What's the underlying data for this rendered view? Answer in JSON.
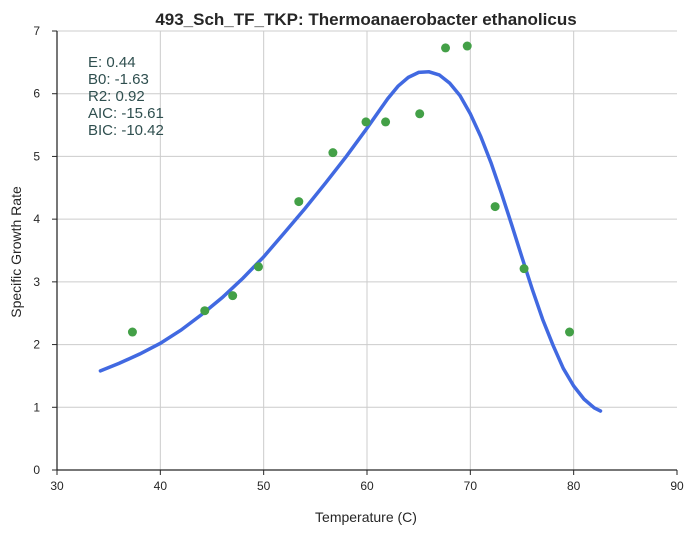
{
  "chart_data": {
    "type": "scatter",
    "title": "493_Sch_TF_TKP: Thermoanaerobacter ethanolicus",
    "xlabel": "Temperature (C)",
    "ylabel": "Specific Growth Rate",
    "xlim": [
      30,
      90
    ],
    "ylim": [
      0,
      7
    ],
    "x_ticks": [
      "30",
      "40",
      "50",
      "60",
      "70",
      "80",
      "90"
    ],
    "y_ticks": [
      "0",
      "1",
      "2",
      "3",
      "4",
      "5",
      "6",
      "7"
    ],
    "grid": true,
    "points": {
      "color": "#43a047",
      "x": [
        37.3,
        44.3,
        47.0,
        49.5,
        53.4,
        56.7,
        59.9,
        61.8,
        65.1,
        67.6,
        69.7,
        72.4,
        75.2,
        79.6
      ],
      "y": [
        2.2,
        2.54,
        2.78,
        3.24,
        4.28,
        5.06,
        5.55,
        5.55,
        5.68,
        6.73,
        6.76,
        4.2,
        3.21,
        2.2
      ]
    },
    "fit": {
      "color": "#4169e1",
      "x": [
        34.2,
        36,
        38,
        40,
        42,
        44,
        46,
        48,
        50,
        52,
        54,
        56,
        58,
        60,
        62,
        63,
        64,
        65,
        66,
        67,
        68,
        69,
        70,
        71,
        72,
        73,
        74,
        75,
        76,
        77,
        78,
        79,
        80,
        81,
        82,
        82.6
      ],
      "y": [
        1.58,
        1.7,
        1.85,
        2.02,
        2.23,
        2.48,
        2.75,
        3.06,
        3.4,
        3.78,
        4.17,
        4.58,
        5.0,
        5.45,
        5.92,
        6.12,
        6.26,
        6.34,
        6.35,
        6.3,
        6.17,
        5.97,
        5.68,
        5.32,
        4.9,
        4.42,
        3.91,
        3.39,
        2.88,
        2.4,
        1.99,
        1.62,
        1.34,
        1.13,
        0.99,
        0.94
      ]
    },
    "annotation": [
      "E:  0.44",
      "B0:  -1.63",
      "R2:  0.92",
      "AIC: -15.61",
      "BIC: -10.42"
    ]
  }
}
